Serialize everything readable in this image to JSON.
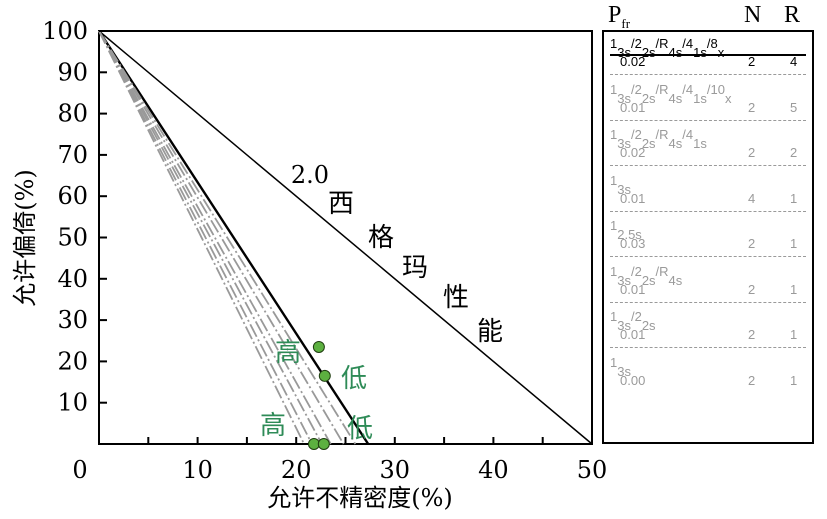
{
  "chart_data": {
    "type": "line",
    "xlabel": "允许不精密度(%)",
    "ylabel": "允许偏倚(%)",
    "xlim": [
      0,
      50
    ],
    "ylim": [
      0,
      100
    ],
    "x_ticks": [
      "0",
      "10",
      "20",
      "30",
      "40",
      "50"
    ],
    "y_ticks": [
      "10",
      "20",
      "30",
      "40",
      "50",
      "60",
      "70",
      "80",
      "90",
      "100"
    ],
    "series": [
      {
        "name": "2.0 西格玛性能",
        "x": [
          0,
          50
        ],
        "y": [
          100,
          0
        ],
        "color": "#000000"
      },
      {
        "x": [
          0,
          27.3
        ],
        "y": [
          100,
          0
        ],
        "color": "#000000"
      },
      {
        "x": [
          0,
          26.0
        ],
        "y": [
          100,
          0
        ],
        "color": "#999999"
      },
      {
        "x": [
          0,
          24.8
        ],
        "y": [
          100,
          0
        ],
        "color": "#999999"
      },
      {
        "x": [
          0,
          23.5
        ],
        "y": [
          100,
          0
        ],
        "color": "#999999"
      },
      {
        "x": [
          0,
          22.6
        ],
        "y": [
          100,
          0
        ],
        "color": "#999999"
      },
      {
        "x": [
          0,
          21.6
        ],
        "y": [
          100,
          0
        ],
        "color": "#999999"
      },
      {
        "x": [
          0,
          20.8
        ],
        "y": [
          100,
          0
        ],
        "color": "#999999"
      }
    ],
    "points": [
      {
        "x": 22.3,
        "y": 23.5
      },
      {
        "x": 22.9,
        "y": 16.5
      },
      {
        "x": 21.8,
        "y": 0
      },
      {
        "x": 22.8,
        "y": 0
      }
    ],
    "point_color": "#5cb040",
    "annotations": {
      "sigma_label": "2.0",
      "sigma_words": [
        "西",
        "格",
        "玛",
        "性",
        "能"
      ],
      "high_upper": "高",
      "low_upper": "低",
      "high_lower": "高",
      "low_lower": "低",
      "annotation_color": "#2e8b57"
    },
    "zero_label": "0"
  },
  "rules_panel": {
    "header": {
      "p": "P",
      "p_sub": "fr",
      "n": "N",
      "r": "R"
    },
    "rules": [
      {
        "name": [
          "1",
          "3s",
          "/2",
          "2s",
          "/R",
          "4s",
          "/4",
          "1s",
          "/8",
          "x"
        ],
        "p": "0.02",
        "n": "2",
        "r": "4"
      },
      {
        "name": [
          "1",
          "3s",
          "/2",
          "2s",
          "/R",
          "4s",
          "/4",
          "1s",
          "/10",
          "x"
        ],
        "p": "0.01",
        "n": "2",
        "r": "5"
      },
      {
        "name": [
          "1",
          "3s",
          "/2",
          "2s",
          "/R",
          "4s",
          "/4",
          "1s"
        ],
        "p": "0.02",
        "n": "2",
        "r": "2"
      },
      {
        "name": [
          "1",
          "3s"
        ],
        "p": "0.01",
        "n": "4",
        "r": "1"
      },
      {
        "name": [
          "1",
          "2.5s"
        ],
        "p": "0.03",
        "n": "2",
        "r": "1"
      },
      {
        "name": [
          "1",
          "3s",
          "/2",
          "2s",
          "/R",
          "4s"
        ],
        "p": "0.01",
        "n": "2",
        "r": "1"
      },
      {
        "name": [
          "1",
          "3s",
          "/2",
          "2s"
        ],
        "p": "0.01",
        "n": "2",
        "r": "1"
      },
      {
        "name": [
          "1",
          "3s"
        ],
        "p": "0.00",
        "n": "2",
        "r": "1"
      }
    ]
  }
}
